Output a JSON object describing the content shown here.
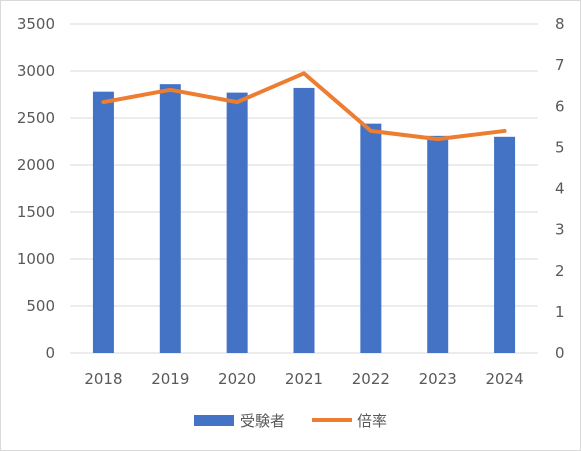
{
  "chart_data": {
    "type": "bar+line",
    "title": "",
    "categories": [
      "2018",
      "2019",
      "2020",
      "2021",
      "2022",
      "2023",
      "2024"
    ],
    "series": [
      {
        "name": "受験者",
        "type": "bar",
        "axis": "left",
        "color": "#4472c4",
        "values": [
          2780,
          2860,
          2770,
          2820,
          2440,
          2310,
          2300
        ]
      },
      {
        "name": "倍率",
        "type": "line",
        "axis": "right",
        "color": "#ed7d31",
        "values": [
          6.1,
          6.4,
          6.1,
          6.8,
          5.4,
          5.2,
          5.4
        ]
      }
    ],
    "y_left": {
      "ylim": [
        0,
        3500
      ],
      "ticks": [
        "0",
        "500",
        "1000",
        "1500",
        "2000",
        "2500",
        "3000",
        "3500"
      ]
    },
    "y_right": {
      "ylim": [
        0,
        8
      ],
      "ticks": [
        "0",
        "1",
        "2",
        "3",
        "4",
        "5",
        "6",
        "7",
        "8"
      ]
    },
    "grid": true,
    "legend_position": "bottom"
  }
}
